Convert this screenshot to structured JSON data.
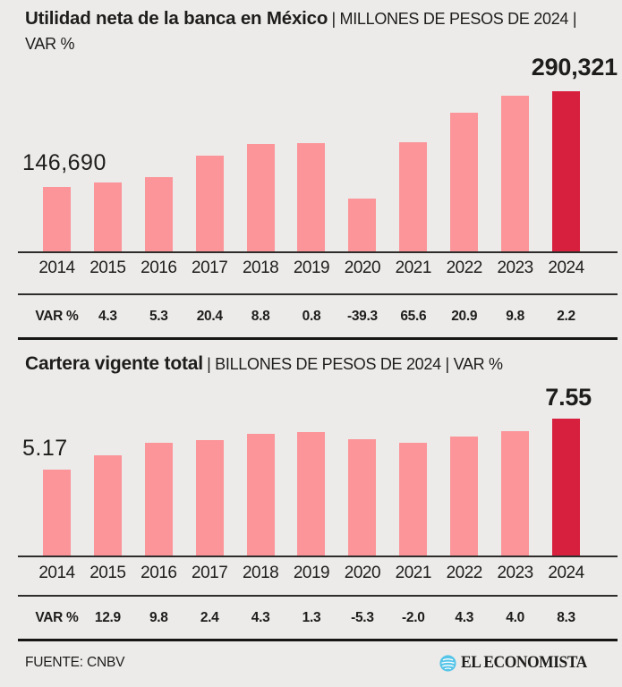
{
  "colors": {
    "background": "#edebe9",
    "text": "#1d1d1b",
    "axis": "#2e2d2b",
    "bar_pink": "#fb959a",
    "bar_red": "#d7203e",
    "logo_blue": "#57c5e8"
  },
  "chart_data": [
    {
      "type": "bar",
      "title": "Utilidad neta de la banca en México",
      "subtitle": "| MILLONES DE PESOS DE 2024 | VAR %",
      "units": "millones de pesos de 2024",
      "categories": [
        2014,
        2015,
        2016,
        2017,
        2018,
        2019,
        2020,
        2021,
        2022,
        2023,
        2024
      ],
      "values": [
        146690,
        153000,
        161110,
        193970,
        211040,
        212730,
        129130,
        213840,
        258530,
        283860,
        290321
      ],
      "var_pct": [
        null,
        4.3,
        5.3,
        20.4,
        8.8,
        0.8,
        -39.3,
        65.6,
        20.9,
        9.8,
        2.2
      ],
      "var_row_label": "VAR %",
      "point_labels": {
        "first": "146,690",
        "last": "290,321"
      },
      "highlight_index": 10,
      "ylim_visual": [
        46500,
        290321
      ],
      "grid": false,
      "legend": "none"
    },
    {
      "type": "bar",
      "title": "Cartera vigente total",
      "subtitle": "| BILLONES DE PESOS DE 2024 | VAR %",
      "units": "billones de pesos de 2024",
      "categories": [
        2014,
        2015,
        2016,
        2017,
        2018,
        2019,
        2020,
        2021,
        2022,
        2023,
        2024
      ],
      "values": [
        5.17,
        5.84,
        6.41,
        6.56,
        6.85,
        6.94,
        6.57,
        6.44,
        6.71,
        6.98,
        7.55
      ],
      "var_pct": [
        null,
        12.9,
        9.8,
        2.4,
        4.3,
        1.3,
        -5.3,
        -2.0,
        4.3,
        4.0,
        8.3
      ],
      "var_row_label": "VAR %",
      "point_labels": {
        "first": "5.17",
        "last": "7.55"
      },
      "highlight_index": 10,
      "ylim_visual": [
        1.08,
        7.55
      ],
      "grid": false,
      "legend": "none"
    }
  ],
  "footer": {
    "source": "FUENTE: CNBV",
    "brand": "EL ECONOMISTA"
  }
}
